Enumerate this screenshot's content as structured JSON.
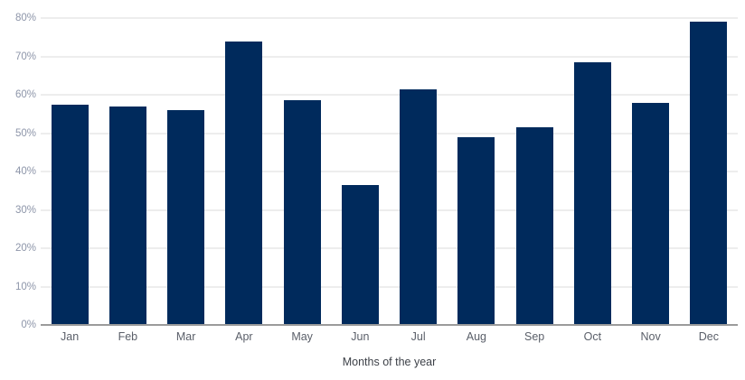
{
  "chart_data": {
    "type": "bar",
    "title": "",
    "xlabel": "Months of the year",
    "ylabel": "",
    "categories": [
      "Jan",
      "Feb",
      "Mar",
      "Apr",
      "May",
      "Jun",
      "Jul",
      "Aug",
      "Sep",
      "Oct",
      "Nov",
      "Dec"
    ],
    "values": [
      57.5,
      57,
      56,
      74,
      58.5,
      36.5,
      61.5,
      49,
      51.5,
      68.5,
      58,
      79
    ],
    "ylim": [
      0,
      80
    ],
    "ytick_step": 10,
    "ytick_labels": [
      "0%",
      "10%",
      "20%",
      "30%",
      "40%",
      "50%",
      "60%",
      "70%",
      "80%"
    ],
    "grid": true,
    "legend": "none",
    "bar_color": "#002a5c"
  },
  "colors": {
    "bar": "#002a5c",
    "gridline": "#ededed",
    "axis_line": "#9b9b9b",
    "y_label_text": "#8d95a9",
    "x_label_text": "#5a5f69",
    "axis_title_text": "#3d4148",
    "background": "#ffffff"
  }
}
